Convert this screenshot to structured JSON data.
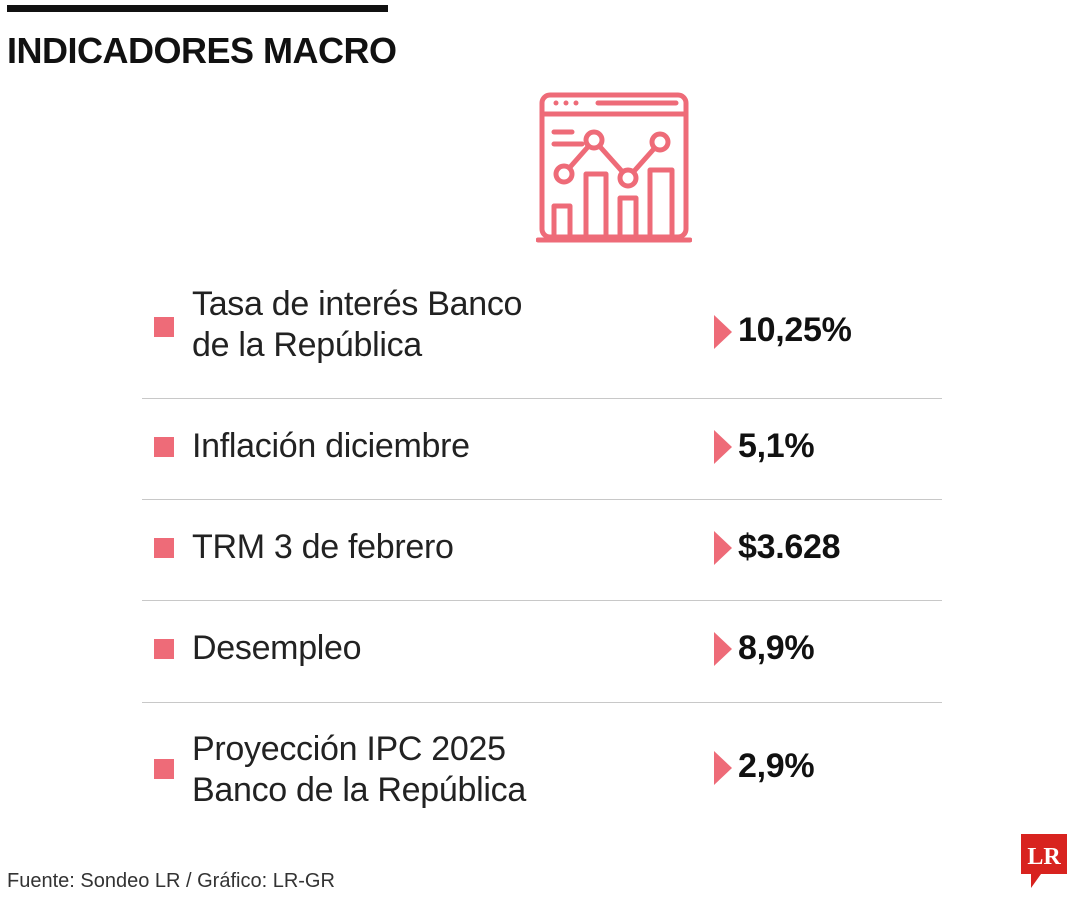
{
  "header": {
    "title": "INDICADORES MACRO"
  },
  "icons": {
    "hero": "dashboard-chart-icon",
    "bullet": "square-bullet",
    "value_marker": "triangle-right-icon",
    "brand_logo": "lr-logo"
  },
  "colors": {
    "accent": "#ee6b78",
    "logo_red": "#d8231f",
    "text": "#222222",
    "divider": "#c8c8c8"
  },
  "indicators": [
    {
      "label_lines": [
        "Tasa de interés Banco",
        "de la República"
      ],
      "value": "10,25%"
    },
    {
      "label_lines": [
        "Inflación diciembre"
      ],
      "value": "5,1%"
    },
    {
      "label_lines": [
        "TRM 3 de febrero"
      ],
      "value": "$3.628"
    },
    {
      "label_lines": [
        "Desempleo"
      ],
      "value": "8,9%"
    },
    {
      "label_lines": [
        "Proyección IPC 2025",
        "Banco de la República"
      ],
      "value": "2,9%"
    }
  ],
  "footer": {
    "source": "Fuente: Sondeo LR / Gráfico: LR-GR",
    "logo_text": "LR"
  }
}
